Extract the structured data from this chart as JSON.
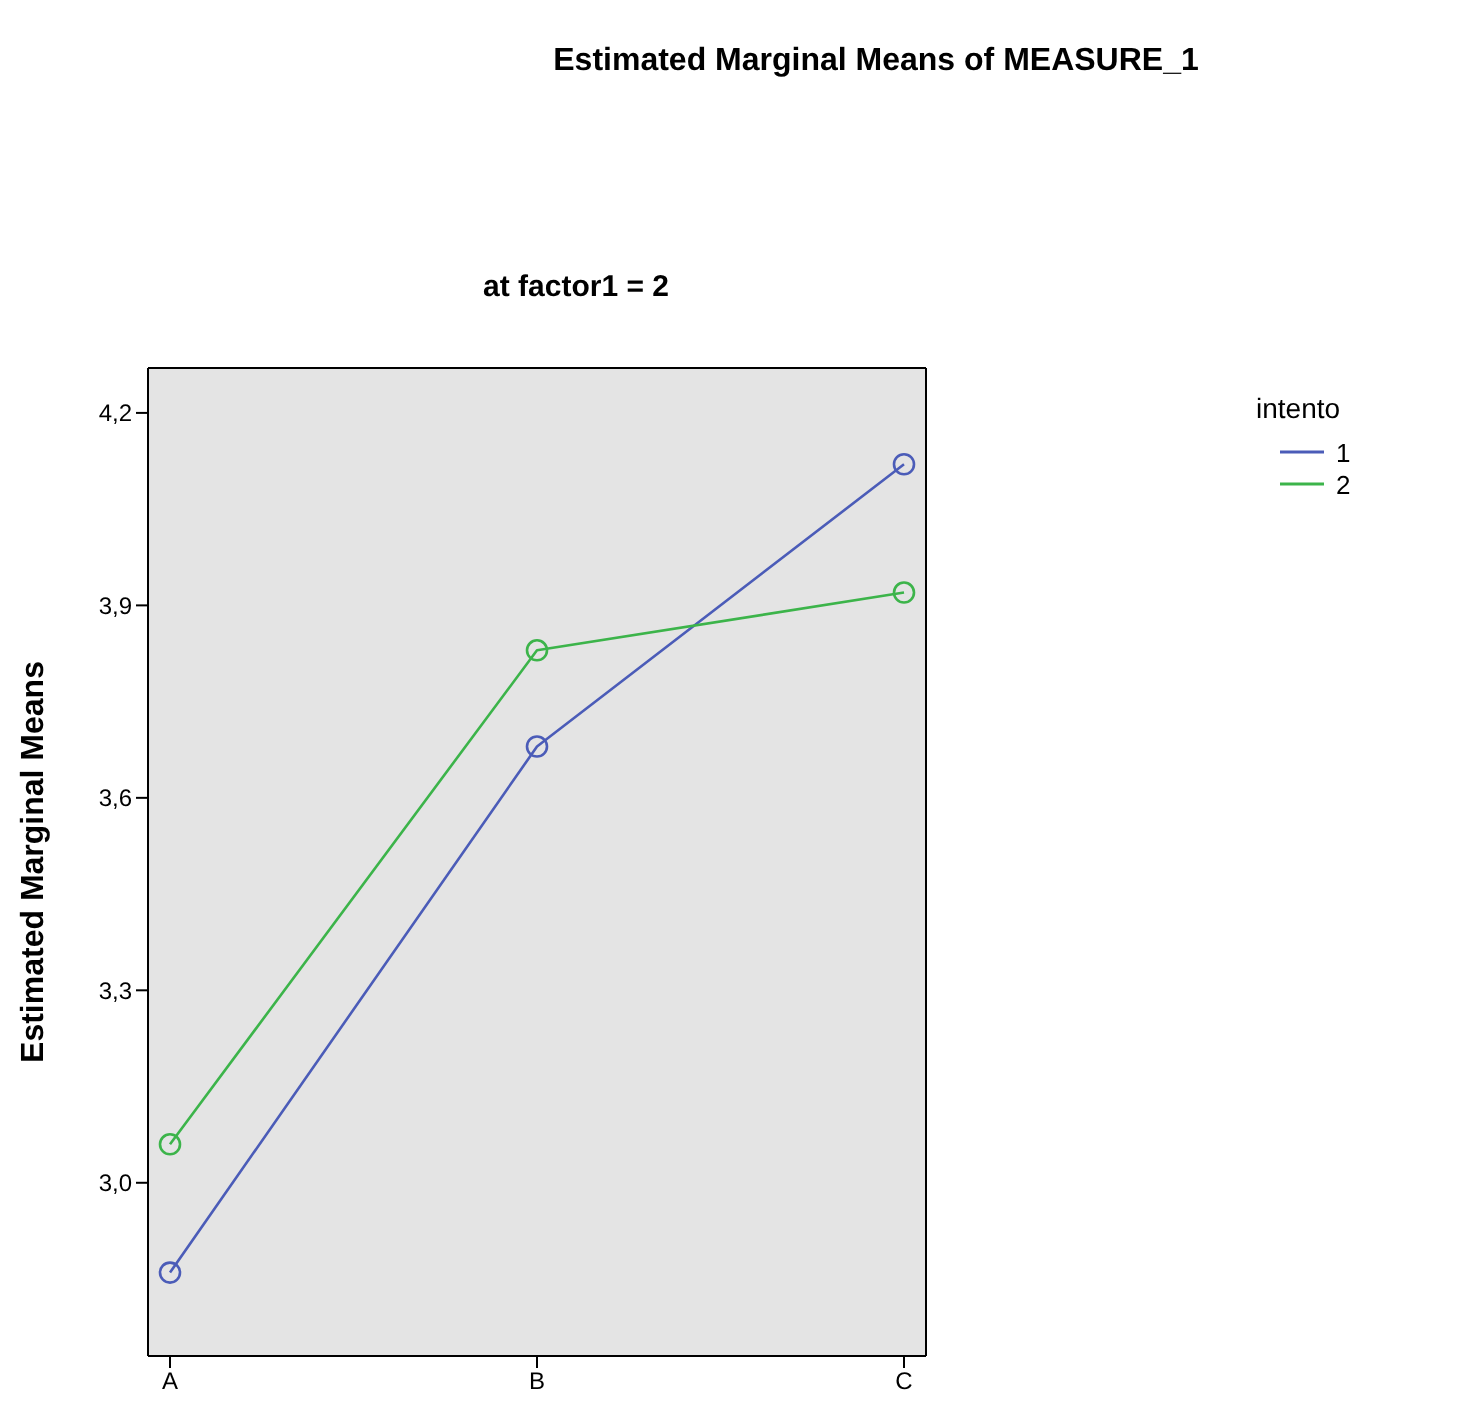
{
  "chart_data": {
    "type": "line",
    "title": "Estimated Marginal Means of MEASURE_1",
    "subtitle": "at factor1 = 2",
    "ylabel": "Estimated Marginal Means",
    "legend_title": "intento",
    "categories": [
      "A",
      "B",
      "C"
    ],
    "series": [
      {
        "name": "1",
        "color": "#4b5cb8",
        "values": [
          2.86,
          3.68,
          4.12
        ]
      },
      {
        "name": "2",
        "color": "#3cb44a",
        "values": [
          3.06,
          3.83,
          3.92
        ]
      }
    ],
    "ylim": [
      2.73,
      4.27
    ],
    "yticks": [
      {
        "value": 3.0,
        "label": "3,0"
      },
      {
        "value": 3.3,
        "label": "3,3"
      },
      {
        "value": 3.6,
        "label": "3,6"
      },
      {
        "value": 3.9,
        "label": "3,9"
      },
      {
        "value": 4.2,
        "label": "4,2"
      }
    ],
    "grid": false,
    "legend": "top right",
    "marker": "circle",
    "line_style": "solid"
  }
}
